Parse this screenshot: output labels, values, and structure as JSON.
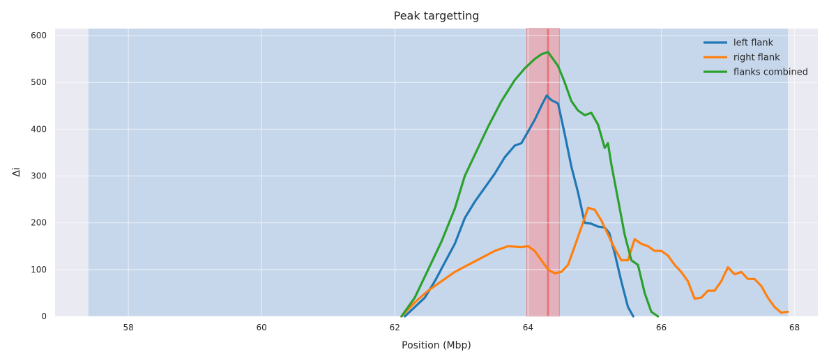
{
  "chart_data": {
    "type": "line",
    "title": "Peak targetting",
    "xlabel": "Position (Mbp)",
    "ylabel": "Δi",
    "xlim": [
      56.9,
      68.35
    ],
    "ylim": [
      0,
      615
    ],
    "xticks": [
      58,
      60,
      62,
      64,
      66,
      68
    ],
    "yticks": [
      0,
      100,
      200,
      300,
      400,
      500,
      600
    ],
    "grid": true,
    "legend_position": "top-right",
    "shaded_regions": [
      {
        "x": [
          57.4,
          67.9
        ],
        "color": "#a7c7e7",
        "role": "search-window"
      },
      {
        "x": [
          63.98,
          64.47
        ],
        "color": "#f0a1a8",
        "role": "peak-interval"
      }
    ],
    "peak_line": {
      "x": 64.3,
      "color": "#e3777b"
    },
    "series": [
      {
        "name": "left flank",
        "color": "#1f77b4",
        "x": [
          62.15,
          62.3,
          62.45,
          62.6,
          62.75,
          62.9,
          63.05,
          63.2,
          63.35,
          63.5,
          63.65,
          63.8,
          63.9,
          64.0,
          64.1,
          64.2,
          64.28,
          64.35,
          64.45,
          64.55,
          64.65,
          64.75,
          64.85,
          64.95,
          65.05,
          65.15,
          65.22,
          65.3,
          65.4,
          65.5,
          65.58
        ],
        "values": [
          0,
          20,
          40,
          75,
          115,
          155,
          210,
          245,
          275,
          305,
          340,
          365,
          370,
          395,
          420,
          450,
          472,
          462,
          455,
          390,
          320,
          265,
          200,
          198,
          192,
          190,
          178,
          135,
          75,
          20,
          0
        ]
      },
      {
        "name": "right flank",
        "color": "#ff7f0e",
        "x": [
          62.1,
          62.3,
          62.5,
          62.7,
          62.9,
          63.1,
          63.3,
          63.5,
          63.7,
          63.9,
          64.0,
          64.1,
          64.2,
          64.3,
          64.4,
          64.5,
          64.6,
          64.7,
          64.8,
          64.9,
          65.0,
          65.1,
          65.2,
          65.3,
          65.4,
          65.5,
          65.6,
          65.7,
          65.8,
          65.9,
          66.0,
          66.1,
          66.2,
          66.3,
          66.4,
          66.5,
          66.6,
          66.7,
          66.8,
          66.9,
          67.0,
          67.1,
          67.2,
          67.3,
          67.4,
          67.5,
          67.6,
          67.7,
          67.8,
          67.9
        ],
        "values": [
          0,
          30,
          55,
          75,
          95,
          110,
          125,
          140,
          150,
          148,
          150,
          140,
          120,
          100,
          92,
          95,
          110,
          150,
          190,
          232,
          228,
          205,
          175,
          145,
          120,
          120,
          165,
          155,
          150,
          140,
          140,
          130,
          110,
          95,
          75,
          38,
          40,
          55,
          55,
          75,
          105,
          90,
          95,
          80,
          80,
          65,
          40,
          20,
          8,
          10
        ]
      },
      {
        "name": "flanks combined",
        "color": "#2ca02c",
        "x": [
          62.1,
          62.3,
          62.5,
          62.7,
          62.9,
          63.05,
          63.2,
          63.4,
          63.6,
          63.8,
          63.95,
          64.1,
          64.2,
          64.3,
          64.35,
          64.45,
          64.55,
          64.65,
          64.75,
          64.85,
          64.95,
          65.05,
          65.15,
          65.2,
          65.25,
          65.35,
          65.45,
          65.55,
          65.65,
          65.75,
          65.85,
          65.95
        ],
        "values": [
          0,
          40,
          100,
          160,
          230,
          300,
          345,
          405,
          460,
          505,
          530,
          550,
          560,
          565,
          555,
          535,
          500,
          460,
          440,
          430,
          435,
          410,
          360,
          370,
          325,
          250,
          175,
          120,
          110,
          50,
          10,
          0
        ]
      }
    ]
  }
}
